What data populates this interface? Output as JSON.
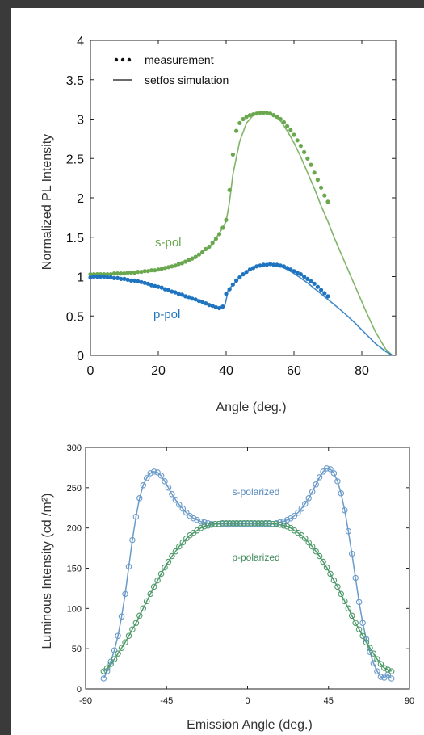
{
  "charts": {
    "top": {
      "xlabel": "Angle (deg.)",
      "ylabel": "Normalized PL Intensity",
      "legend": {
        "measurement": "measurement",
        "simulation": "setfos simulation"
      },
      "labels": {
        "s": "s-pol",
        "p": "p-pol"
      }
    },
    "bottom": {
      "xlabel": "Emission Angle (deg.)",
      "ylabel": "Luminous Intensity (cd /m²)",
      "labels": {
        "s": "s-polarized",
        "p": "p-polarized"
      }
    }
  },
  "colors": {
    "s_top": "#6aa84f",
    "p_top": "#1f74c0",
    "s_bottom": "#6a9ac9",
    "p_bottom": "#4f9a6b"
  },
  "chart_data": [
    {
      "type": "line",
      "xlabel": "Angle (deg.)",
      "ylabel": "Normalized PL Intensity",
      "xlim": [
        0,
        90
      ],
      "ylim": [
        0,
        4
      ],
      "xticks": [
        0,
        20,
        40,
        60,
        80
      ],
      "yticks": [
        0,
        0.5,
        1,
        1.5,
        2,
        2.5,
        3,
        3.5,
        4
      ],
      "legend": [
        "measurement",
        "setfos simulation"
      ],
      "legend_position": "top-left",
      "series": [
        {
          "name": "s-pol",
          "simulation": {
            "x": [
              0,
              5,
              10,
              15,
              20,
              25,
              30,
              35,
              38,
              40,
              41,
              42,
              44,
              46,
              48,
              50,
              52,
              54,
              56,
              58,
              60,
              62,
              64,
              66,
              68,
              70,
              72,
              75,
              78,
              81,
              84,
              87,
              89
            ],
            "y": [
              1.03,
              1.03,
              1.04,
              1.06,
              1.09,
              1.14,
              1.22,
              1.37,
              1.55,
              1.7,
              1.95,
              2.3,
              2.72,
              2.95,
              3.05,
              3.08,
              3.08,
              3.05,
              2.98,
              2.85,
              2.7,
              2.52,
              2.32,
              2.12,
              1.9,
              1.7,
              1.48,
              1.18,
              0.88,
              0.58,
              0.3,
              0.08,
              0.0
            ]
          },
          "measurement": {
            "x": [
              0,
              1,
              2,
              3,
              4,
              5,
              6,
              7,
              8,
              9,
              10,
              11,
              12,
              13,
              14,
              15,
              16,
              17,
              18,
              19,
              20,
              21,
              22,
              23,
              24,
              25,
              26,
              27,
              28,
              29,
              30,
              31,
              32,
              33,
              34,
              35,
              36,
              37,
              38,
              39,
              40,
              41,
              42,
              43,
              44,
              45,
              46,
              47,
              48,
              49,
              50,
              51,
              52,
              53,
              54,
              55,
              56,
              57,
              58,
              59,
              60,
              61,
              62,
              63,
              64,
              65,
              66,
              67,
              68,
              69,
              70
            ],
            "y": [
              1.03,
              1.03,
              1.03,
              1.03,
              1.03,
              1.03,
              1.03,
              1.04,
              1.04,
              1.04,
              1.04,
              1.05,
              1.05,
              1.05,
              1.06,
              1.06,
              1.07,
              1.07,
              1.08,
              1.08,
              1.09,
              1.1,
              1.11,
              1.12,
              1.13,
              1.14,
              1.16,
              1.17,
              1.19,
              1.21,
              1.23,
              1.25,
              1.28,
              1.31,
              1.35,
              1.38,
              1.43,
              1.48,
              1.54,
              1.62,
              1.72,
              2.1,
              2.55,
              2.85,
              2.95,
              3.0,
              3.03,
              3.05,
              3.06,
              3.07,
              3.08,
              3.08,
              3.08,
              3.07,
              3.05,
              3.03,
              3.0,
              2.96,
              2.91,
              2.86,
              2.8,
              2.73,
              2.66,
              2.58,
              2.5,
              2.42,
              2.32,
              2.23,
              2.13,
              2.03,
              1.95
            ]
          }
        },
        {
          "name": "p-pol",
          "simulation": {
            "x": [
              0,
              3,
              6,
              10,
              15,
              20,
              25,
              30,
              35,
              38,
              39.5,
              40,
              40.5,
              42,
              44,
              46,
              48,
              50,
              52,
              54,
              56,
              58,
              60,
              62,
              64,
              66,
              68,
              70,
              72,
              75,
              78,
              81,
              84,
              87,
              89
            ],
            "y": [
              0.99,
              1.0,
              0.99,
              0.97,
              0.93,
              0.87,
              0.8,
              0.72,
              0.64,
              0.6,
              0.62,
              0.7,
              0.82,
              0.9,
              0.99,
              1.06,
              1.11,
              1.14,
              1.15,
              1.15,
              1.13,
              1.09,
              1.04,
              0.98,
              0.92,
              0.85,
              0.78,
              0.71,
              0.64,
              0.53,
              0.41,
              0.28,
              0.15,
              0.05,
              0.0
            ]
          },
          "measurement": {
            "x": [
              0,
              1,
              2,
              3,
              4,
              5,
              6,
              7,
              8,
              9,
              10,
              11,
              12,
              13,
              14,
              15,
              16,
              17,
              18,
              19,
              20,
              21,
              22,
              23,
              24,
              25,
              26,
              27,
              28,
              29,
              30,
              31,
              32,
              33,
              34,
              35,
              36,
              37,
              38,
              39,
              40,
              41,
              42,
              43,
              44,
              45,
              46,
              47,
              48,
              49,
              50,
              51,
              52,
              53,
              54,
              55,
              56,
              57,
              58,
              59,
              60,
              61,
              62,
              63,
              64,
              65,
              66,
              67,
              68,
              69,
              70
            ],
            "y": [
              0.99,
              1.0,
              1.0,
              1.0,
              1.0,
              0.99,
              0.99,
              0.98,
              0.98,
              0.97,
              0.97,
              0.96,
              0.95,
              0.95,
              0.94,
              0.93,
              0.92,
              0.91,
              0.89,
              0.88,
              0.87,
              0.86,
              0.84,
              0.83,
              0.81,
              0.8,
              0.78,
              0.77,
              0.75,
              0.74,
              0.72,
              0.71,
              0.69,
              0.68,
              0.66,
              0.64,
              0.63,
              0.61,
              0.6,
              0.62,
              0.78,
              0.84,
              0.9,
              0.95,
              0.99,
              1.03,
              1.06,
              1.09,
              1.11,
              1.13,
              1.14,
              1.15,
              1.15,
              1.16,
              1.15,
              1.15,
              1.14,
              1.13,
              1.11,
              1.09,
              1.07,
              1.05,
              1.03,
              1.0,
              0.97,
              0.94,
              0.91,
              0.87,
              0.83,
              0.79,
              0.75
            ]
          }
        }
      ]
    },
    {
      "type": "line",
      "xlabel": "Emission Angle (deg.)",
      "ylabel": "Luminous Intensity (cd /m²)",
      "xlim": [
        -90,
        90
      ],
      "ylim": [
        0,
        300
      ],
      "xticks": [
        -90,
        -45,
        0,
        45,
        90
      ],
      "yticks": [
        0,
        50,
        100,
        150,
        200,
        250,
        300
      ],
      "series": [
        {
          "name": "s-polarized",
          "x": [
            -80,
            -78,
            -76,
            -74,
            -72,
            -70,
            -68,
            -66,
            -64,
            -62,
            -60,
            -58,
            -56,
            -54,
            -52,
            -50,
            -48,
            -46,
            -44,
            -42,
            -40,
            -38,
            -36,
            -34,
            -32,
            -30,
            -28,
            -26,
            -24,
            -22,
            -20,
            -18,
            -16,
            -14,
            -12,
            -10,
            -8,
            -6,
            -4,
            -2,
            0,
            2,
            4,
            6,
            8,
            10,
            12,
            14,
            16,
            18,
            20,
            22,
            24,
            26,
            28,
            30,
            32,
            34,
            36,
            38,
            40,
            42,
            44,
            46,
            48,
            50,
            52,
            54,
            56,
            58,
            60,
            62,
            64,
            66,
            68,
            70,
            72,
            74,
            76,
            78,
            80
          ],
          "values": [
            13,
            22,
            34,
            48,
            66,
            90,
            118,
            152,
            185,
            214,
            237,
            253,
            262,
            268,
            270,
            269,
            265,
            258,
            250,
            242,
            235,
            229,
            224,
            219,
            215,
            212,
            210,
            208,
            207,
            206,
            205,
            205,
            205,
            205,
            205,
            205,
            205,
            205,
            205,
            205,
            205,
            205,
            205,
            205,
            205,
            205,
            205,
            205,
            206,
            207,
            208,
            210,
            212,
            215,
            219,
            224,
            230,
            237,
            245,
            254,
            263,
            270,
            274,
            273,
            268,
            258,
            243,
            222,
            196,
            168,
            138,
            108,
            82,
            62,
            46,
            32,
            22,
            15,
            14,
            18,
            13
          ]
        },
        {
          "name": "p-polarized",
          "x": [
            -80,
            -78,
            -76,
            -74,
            -72,
            -70,
            -68,
            -66,
            -64,
            -62,
            -60,
            -58,
            -56,
            -54,
            -52,
            -50,
            -48,
            -46,
            -44,
            -42,
            -40,
            -38,
            -36,
            -34,
            -32,
            -30,
            -28,
            -26,
            -24,
            -22,
            -20,
            -18,
            -16,
            -14,
            -12,
            -10,
            -8,
            -6,
            -4,
            -2,
            0,
            2,
            4,
            6,
            8,
            10,
            12,
            14,
            16,
            18,
            20,
            22,
            24,
            26,
            28,
            30,
            32,
            34,
            36,
            38,
            40,
            42,
            44,
            46,
            48,
            50,
            52,
            54,
            56,
            58,
            60,
            62,
            64,
            66,
            68,
            70,
            72,
            74,
            76,
            78,
            80
          ],
          "values": [
            22,
            26,
            31,
            37,
            44,
            51,
            58,
            66,
            74,
            82,
            91,
            100,
            109,
            118,
            127,
            135,
            143,
            151,
            158,
            165,
            171,
            177,
            182,
            187,
            191,
            194,
            197,
            200,
            202,
            203,
            204,
            205,
            205,
            206,
            206,
            206,
            206,
            206,
            206,
            206,
            206,
            206,
            206,
            206,
            206,
            206,
            206,
            205,
            205,
            204,
            203,
            202,
            200,
            197,
            194,
            191,
            187,
            182,
            177,
            171,
            165,
            158,
            151,
            143,
            135,
            127,
            118,
            109,
            100,
            91,
            82,
            74,
            66,
            58,
            51,
            44,
            37,
            31,
            26,
            24,
            22
          ]
        }
      ]
    }
  ]
}
